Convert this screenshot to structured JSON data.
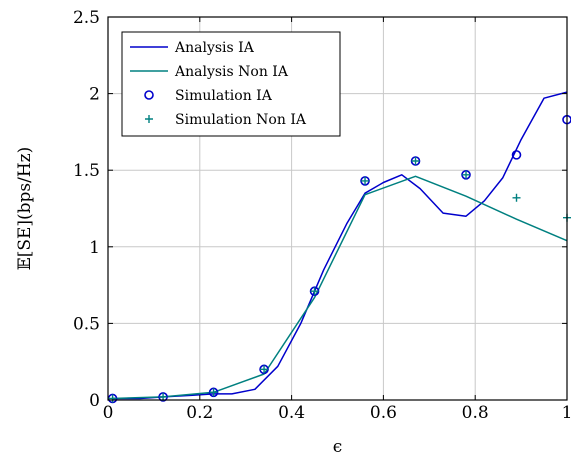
{
  "chart_data": {
    "type": "line",
    "xlabel": "ϵ",
    "ylabel": "𝔼[SE](bps/Hz)",
    "xlim": [
      0,
      1
    ],
    "ylim": [
      0,
      2.5
    ],
    "xticks": [
      "0",
      "0.2",
      "0.4",
      "0.6",
      "0.8",
      "1"
    ],
    "yticks": [
      "0",
      "0.5",
      "1",
      "1.5",
      "2",
      "2.5"
    ],
    "grid": true,
    "legend_position": "top-left",
    "series": [
      {
        "name": "Analysis IA",
        "kind": "line",
        "color": "#0000cc",
        "x": [
          0.01,
          0.07,
          0.12,
          0.18,
          0.23,
          0.27,
          0.32,
          0.37,
          0.42,
          0.47,
          0.52,
          0.56,
          0.6,
          0.64,
          0.68,
          0.73,
          0.78,
          0.82,
          0.86,
          0.9,
          0.95,
          1.0
        ],
        "y": [
          0.01,
          0.01,
          0.02,
          0.03,
          0.04,
          0.04,
          0.07,
          0.22,
          0.5,
          0.85,
          1.15,
          1.35,
          1.42,
          1.47,
          1.38,
          1.22,
          1.2,
          1.3,
          1.45,
          1.7,
          1.97,
          2.01
        ]
      },
      {
        "name": "Analysis Non IA",
        "kind": "line",
        "color": "#008080",
        "x": [
          0.01,
          0.12,
          0.23,
          0.34,
          0.45,
          0.56,
          0.67,
          0.78,
          0.89,
          1.0
        ],
        "y": [
          0.01,
          0.02,
          0.05,
          0.17,
          0.67,
          1.34,
          1.46,
          1.33,
          1.18,
          1.04
        ]
      },
      {
        "name": "Simulation IA",
        "kind": "scatter-circle",
        "color": "#0000cc",
        "x": [
          0.01,
          0.12,
          0.23,
          0.34,
          0.45,
          0.56,
          0.67,
          0.78,
          0.89,
          1.0
        ],
        "y": [
          0.01,
          0.02,
          0.05,
          0.2,
          0.71,
          1.43,
          1.56,
          1.47,
          1.6,
          1.83
        ]
      },
      {
        "name": "Simulation Non IA",
        "kind": "scatter-plus",
        "color": "#008080",
        "x": [
          0.01,
          0.12,
          0.23,
          0.34,
          0.45,
          0.56,
          0.67,
          0.78,
          0.89,
          1.0
        ],
        "y": [
          0.01,
          0.02,
          0.05,
          0.2,
          0.71,
          1.43,
          1.56,
          1.47,
          1.32,
          1.19
        ]
      }
    ]
  }
}
